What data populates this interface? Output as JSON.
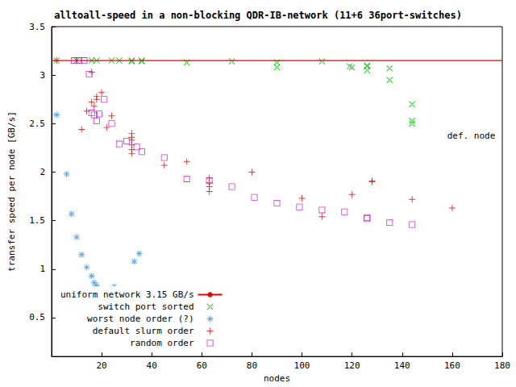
{
  "chart_data": {
    "type": "scatter",
    "title": "alltoall-speed in a non-blocking QDR-IB-network (11+6 36port-switches)",
    "x_label": "nodes",
    "y_label": "transfer speed per node [GB/s]",
    "xlim": [
      0,
      180
    ],
    "xticks": [
      20,
      40,
      60,
      80,
      100,
      120,
      140,
      160,
      180
    ],
    "ylim": [
      0.1,
      3.5
    ],
    "yticks": [
      0.5,
      1,
      1.5,
      2,
      2.5,
      3,
      3.5
    ],
    "grid": false,
    "legend": "lower left",
    "annotations": [
      {
        "text": "def. node",
        "x": 158,
        "y": 2.37
      }
    ],
    "series": [
      {
        "name": "uniform network 3.15 GB/s",
        "type": "line",
        "line_style": "solid",
        "color": "#e00000",
        "x": [
          0,
          180
        ],
        "values": [
          3.15,
          3.15
        ]
      },
      {
        "name": "switch port sorted",
        "type": "scatter",
        "marker": "x",
        "color": "#00b000",
        "x": [
          2,
          10,
          16,
          18,
          24,
          27,
          32,
          32,
          36,
          36,
          54,
          72,
          90,
          90,
          108,
          119,
          120,
          126,
          126,
          126,
          135,
          135,
          144,
          144,
          144
        ],
        "values": [
          3.15,
          3.15,
          3.15,
          3.15,
          3.15,
          3.15,
          3.14,
          3.15,
          3.14,
          3.15,
          3.13,
          3.14,
          3.13,
          3.08,
          3.14,
          3.09,
          3.08,
          3.1,
          3.09,
          3.05,
          3.07,
          2.95,
          2.7,
          2.53,
          2.5
        ]
      },
      {
        "name": "worst node order (?)",
        "type": "scatter",
        "marker": "star",
        "color": "#2080d0",
        "x": [
          2,
          6,
          8,
          10,
          12,
          14,
          16,
          17,
          18,
          25,
          33,
          35
        ],
        "values": [
          2.59,
          1.98,
          1.57,
          1.33,
          1.15,
          1.02,
          0.93,
          0.86,
          0.83,
          0.82,
          1.08,
          1.16
        ]
      },
      {
        "name": "default slurm order",
        "type": "scatter",
        "marker": "plus",
        "color": "#e00000",
        "x": [
          2,
          12,
          14,
          16,
          16,
          17,
          18,
          18,
          20,
          22,
          24,
          32,
          32,
          32,
          32,
          32,
          32,
          45,
          54,
          63,
          63,
          63,
          63,
          80,
          100,
          108,
          120,
          128,
          128,
          144,
          160
        ],
        "values": [
          3.15,
          2.44,
          2.63,
          2.72,
          3.03,
          2.68,
          2.75,
          2.78,
          2.82,
          2.46,
          2.58,
          2.4,
          2.36,
          2.33,
          2.28,
          2.23,
          2.19,
          2.07,
          2.11,
          1.94,
          1.89,
          1.85,
          1.8,
          2.0,
          1.73,
          1.54,
          1.77,
          1.91,
          1.9,
          1.72,
          1.63
        ]
      },
      {
        "name": "random order",
        "type": "scatter",
        "marker": "square",
        "color": "#c000c0",
        "x": [
          9,
          11,
          13,
          15,
          16,
          17,
          18,
          19,
          21,
          24,
          27,
          30,
          34,
          36,
          45,
          54,
          63,
          72,
          81,
          90,
          99,
          108,
          117,
          126,
          126,
          135,
          144
        ],
        "values": [
          3.15,
          3.15,
          3.15,
          3.01,
          2.61,
          2.59,
          2.53,
          2.6,
          2.75,
          2.5,
          2.29,
          2.32,
          2.26,
          2.21,
          2.15,
          1.93,
          1.91,
          1.85,
          1.74,
          1.68,
          1.64,
          1.61,
          1.59,
          1.52,
          1.53,
          1.48,
          1.46
        ]
      }
    ]
  }
}
